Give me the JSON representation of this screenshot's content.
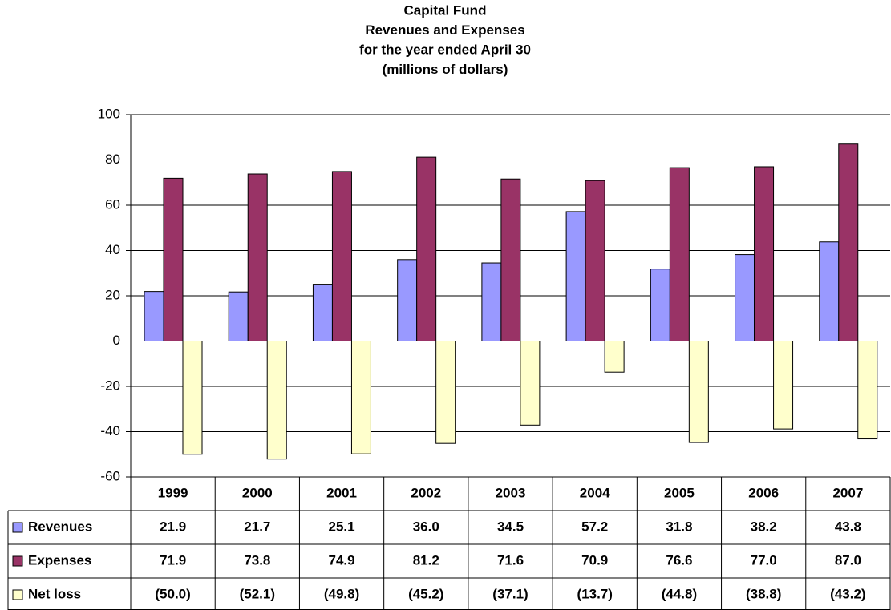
{
  "chart_data": {
    "type": "bar",
    "title": [
      "Capital Fund",
      "Revenues and Expenses",
      "for the year ended April 30",
      "(millions of dollars)"
    ],
    "categories": [
      "1999",
      "2000",
      "2001",
      "2002",
      "2003",
      "2004",
      "2005",
      "2006",
      "2007"
    ],
    "series": [
      {
        "name": "Revenues",
        "color": "#9999ff",
        "values": [
          21.9,
          21.7,
          25.1,
          36.0,
          34.5,
          57.2,
          31.8,
          38.2,
          43.8
        ],
        "value_labels": [
          "21.9",
          "21.7",
          "25.1",
          "36.0",
          "34.5",
          "57.2",
          "31.8",
          "38.2",
          "43.8"
        ]
      },
      {
        "name": "Expenses",
        "color": "#993366",
        "values": [
          71.9,
          73.8,
          74.9,
          81.2,
          71.6,
          70.9,
          76.6,
          77.0,
          87.0
        ],
        "value_labels": [
          "71.9",
          "73.8",
          "74.9",
          "81.2",
          "71.6",
          "70.9",
          "76.6",
          "77.0",
          "87.0"
        ]
      },
      {
        "name": "Net loss",
        "color": "#ffffcc",
        "values": [
          -50.0,
          -52.1,
          -49.8,
          -45.2,
          -37.1,
          -13.7,
          -44.8,
          -38.8,
          -43.2
        ],
        "value_labels": [
          "(50.0)",
          "(52.1)",
          "(49.8)",
          "(45.2)",
          "(37.1)",
          "(13.7)",
          "(44.8)",
          "(38.8)",
          "(43.2)"
        ]
      }
    ],
    "ylim": [
      -60,
      100
    ],
    "yticks": [
      -60,
      -40,
      -20,
      0,
      20,
      40,
      60,
      80,
      100
    ],
    "grid": true
  }
}
